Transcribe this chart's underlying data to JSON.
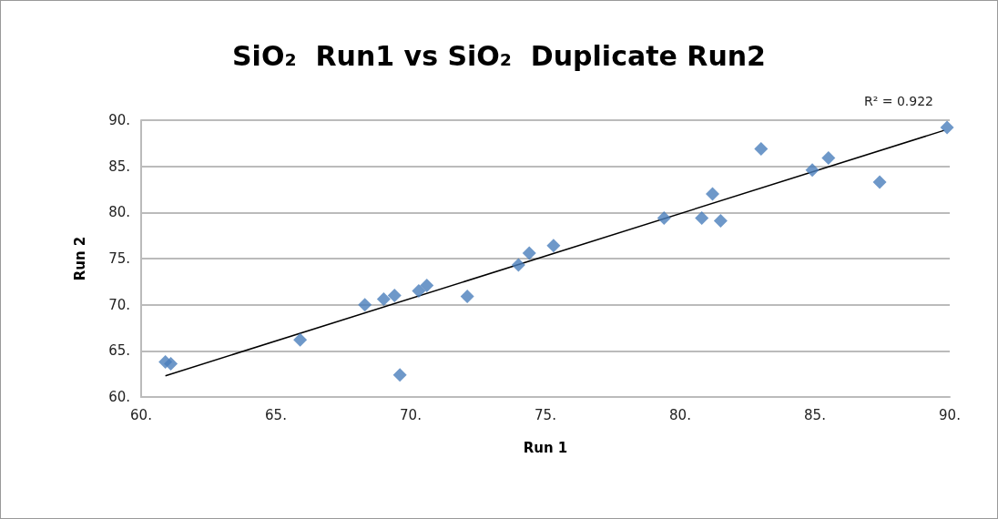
{
  "chart_data": {
    "type": "scatter",
    "title": "SiO₂  Run1 vs SiO₂  Duplicate Run2",
    "xlabel": "Run 1",
    "ylabel": "Run 2",
    "annotations": [
      "R² = 0.922"
    ],
    "series": [
      {
        "color": "#4a7ebb",
        "marker": "diamond",
        "x": [
          60.9,
          61.1,
          65.9,
          68.3,
          69.0,
          69.4,
          69.6,
          70.3,
          70.6,
          72.1,
          74.0,
          74.4,
          75.3,
          79.4,
          80.8,
          81.2,
          81.5,
          83.0,
          84.9,
          85.5,
          87.4,
          89.9
        ],
        "values": [
          63.8,
          63.6,
          66.2,
          70.0,
          70.6,
          71.0,
          62.4,
          71.5,
          72.1,
          70.9,
          74.3,
          75.6,
          76.4,
          79.4,
          79.4,
          82.0,
          79.1,
          86.9,
          84.6,
          85.9,
          83.3,
          89.2
        ]
      },
      {
        "type": "line",
        "color": "#000000",
        "marker": "none",
        "x": [
          60.9,
          89.8
        ],
        "values": [
          62.3,
          88.9
        ]
      }
    ],
    "xlim": [
      60,
      90
    ],
    "ylim": [
      60,
      90
    ],
    "xticks": [
      {
        "value": 60,
        "label": "60."
      },
      {
        "value": 65,
        "label": "65."
      },
      {
        "value": 70,
        "label": "70."
      },
      {
        "value": 75,
        "label": "75."
      },
      {
        "value": 80,
        "label": "80."
      },
      {
        "value": 85,
        "label": "85."
      },
      {
        "value": 90,
        "label": "90."
      }
    ],
    "yticks": [
      {
        "value": 60,
        "label": "60."
      },
      {
        "value": 65,
        "label": "65."
      },
      {
        "value": 70,
        "label": "70."
      },
      {
        "value": 75,
        "label": "75."
      },
      {
        "value": 80,
        "label": "80."
      },
      {
        "value": 85,
        "label": "85."
      },
      {
        "value": 90,
        "label": "90."
      }
    ],
    "grid": "y"
  }
}
